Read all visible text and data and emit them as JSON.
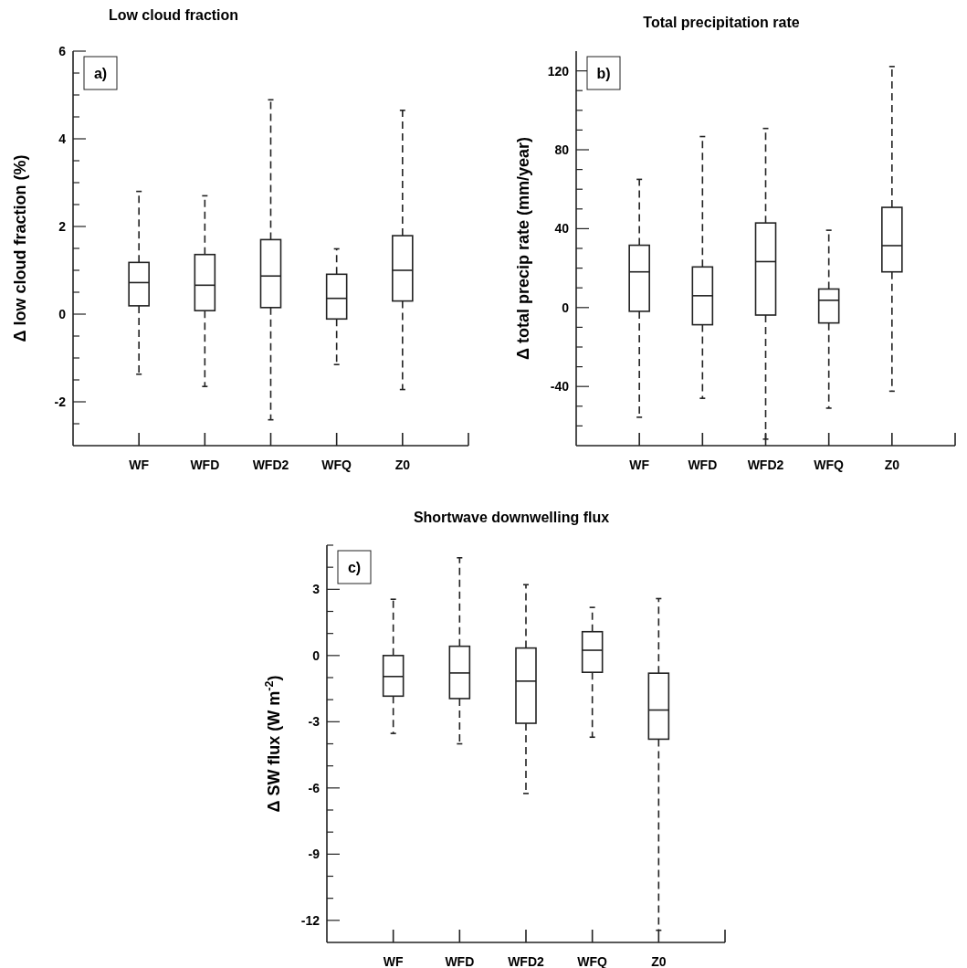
{
  "chart_data": [
    {
      "type": "box",
      "title": "Low cloud fraction",
      "ylabel": "Δ low cloud fraction (%)",
      "annotations": [
        "a)"
      ],
      "categories": [
        "WF",
        "WFD",
        "WFD2",
        "WFQ",
        "Z0"
      ],
      "boxes": [
        {
          "low": -1.37,
          "q1": 0.19,
          "median": 0.72,
          "q3": 1.18,
          "high": 2.8
        },
        {
          "low": -1.65,
          "q1": 0.08,
          "median": 0.66,
          "q3": 1.36,
          "high": 2.7
        },
        {
          "low": -2.41,
          "q1": 0.15,
          "median": 0.87,
          "q3": 1.7,
          "high": 4.89
        },
        {
          "low": -1.15,
          "q1": -0.11,
          "median": 0.36,
          "q3": 0.91,
          "high": 1.49
        },
        {
          "low": -1.72,
          "q1": 0.3,
          "median": 1.0,
          "q3": 1.79,
          "high": 4.65
        }
      ],
      "ylim": [
        -3,
        6
      ],
      "yticks": [
        {
          "value": -2.5,
          "label": null
        },
        -2,
        {
          "value": -1.5,
          "label": null
        },
        {
          "value": -1,
          "label": null
        },
        {
          "value": -0.5,
          "label": null
        },
        0,
        {
          "value": 0.5,
          "label": null
        },
        {
          "value": 1,
          "label": null
        },
        {
          "value": 1.5,
          "label": null
        },
        2,
        {
          "value": 2.5,
          "label": null
        },
        {
          "value": 3,
          "label": null
        },
        {
          "value": 3.5,
          "label": null
        },
        4,
        {
          "value": 4.5,
          "label": null
        },
        {
          "value": 5,
          "label": null
        },
        {
          "value": 5.5,
          "label": null
        },
        6
      ]
    },
    {
      "type": "box",
      "title": "Total precipitation rate",
      "ylabel": "Δ total precip rate (mm/year)",
      "annotations": [
        "b)"
      ],
      "categories": [
        "WF",
        "WFD",
        "WFD2",
        "WFQ",
        "Z0"
      ],
      "boxes": [
        {
          "low": -55.6,
          "q1": -1.9,
          "median": 18.1,
          "q3": 31.6,
          "high": 65
        },
        {
          "low": -46,
          "q1": -8.7,
          "median": 6,
          "q3": 20.6,
          "high": 86.7
        },
        {
          "low": -66.7,
          "q1": -3.8,
          "median": 23.3,
          "q3": 42.9,
          "high": 90.8
        },
        {
          "low": -51,
          "q1": -7.8,
          "median": 3.7,
          "q3": 9.4,
          "high": 39.2
        },
        {
          "low": -42.4,
          "q1": 18.1,
          "median": 31.4,
          "q3": 50.8,
          "high": 122.2
        }
      ],
      "ylim": [
        -70,
        130
      ],
      "yticks": [
        {
          "value": -60,
          "label": null
        },
        {
          "value": -50,
          "label": null
        },
        -40,
        {
          "value": -30,
          "label": null
        },
        {
          "value": -20,
          "label": null
        },
        {
          "value": -10,
          "label": null
        },
        0,
        {
          "value": 10,
          "label": null
        },
        {
          "value": 20,
          "label": null
        },
        {
          "value": 30,
          "label": null
        },
        40,
        {
          "value": 50,
          "label": null
        },
        {
          "value": 60,
          "label": null
        },
        {
          "value": 70,
          "label": null
        },
        80,
        {
          "value": 90,
          "label": null
        },
        {
          "value": 100,
          "label": null
        },
        {
          "value": 110,
          "label": null
        },
        120
      ]
    },
    {
      "type": "box",
      "title": "Shortwave downwelling flux",
      "ylabel": "Δ SW flux (W m$^{-2}$)",
      "annotations": [
        "c)"
      ],
      "categories": [
        "WF",
        "WFD",
        "WFD2",
        "WFQ",
        "Z0"
      ],
      "boxes": [
        {
          "low": -3.53,
          "q1": -1.84,
          "median": -0.95,
          "q3": 0,
          "high": 2.55
        },
        {
          "low": -4.0,
          "q1": -1.95,
          "median": -0.79,
          "q3": 0.42,
          "high": 4.43
        },
        {
          "low": -6.25,
          "q1": -3.07,
          "median": -1.16,
          "q3": 0.34,
          "high": 3.21
        },
        {
          "low": -3.7,
          "q1": -0.76,
          "median": 0.24,
          "q3": 1.08,
          "high": 2.18
        },
        {
          "low": -12.45,
          "q1": -3.79,
          "median": -2.47,
          "q3": -0.8,
          "high": 2.58
        }
      ],
      "ylim": [
        -13,
        5
      ],
      "yticks": [
        -12,
        {
          "value": -11,
          "label": null
        },
        {
          "value": -10,
          "label": null
        },
        -9,
        {
          "value": -8,
          "label": null
        },
        {
          "value": -7,
          "label": null
        },
        -6,
        {
          "value": -5,
          "label": null
        },
        {
          "value": -4,
          "label": null
        },
        -3,
        {
          "value": -2,
          "label": null
        },
        {
          "value": -1,
          "label": null
        },
        0,
        {
          "value": 1,
          "label": null
        },
        {
          "value": 2,
          "label": null
        },
        3,
        {
          "value": 4,
          "label": null
        },
        {
          "value": 5,
          "label": null
        }
      ]
    }
  ]
}
